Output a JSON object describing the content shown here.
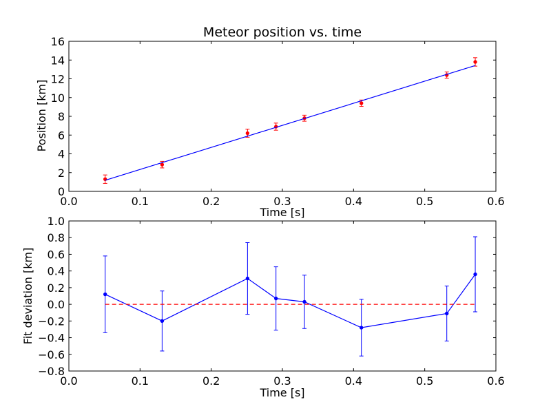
{
  "chart_data": [
    {
      "type": "scatter",
      "title": "Meteor position vs. time",
      "xlabel": "Time [s]",
      "ylabel": "Position [km]",
      "xlim": [
        0.0,
        0.6
      ],
      "ylim": [
        0,
        16
      ],
      "xticks": [
        "0.0",
        "0.1",
        "0.2",
        "0.3",
        "0.4",
        "0.5",
        "0.6"
      ],
      "yticks": [
        "0",
        "2",
        "4",
        "6",
        "8",
        "10",
        "12",
        "14",
        "16"
      ],
      "grid": false,
      "series": [
        {
          "kind": "errorbar-points",
          "color": "#ff0000",
          "x": [
            0.051,
            0.131,
            0.251,
            0.291,
            0.331,
            0.411,
            0.531,
            0.571
          ],
          "y": [
            1.3,
            2.85,
            6.2,
            6.9,
            7.8,
            9.4,
            12.4,
            13.8
          ],
          "yerr": [
            0.45,
            0.35,
            0.43,
            0.38,
            0.32,
            0.34,
            0.33,
            0.45
          ]
        },
        {
          "kind": "fit-line",
          "color": "#0000ff",
          "x": [
            0.051,
            0.571
          ],
          "y": [
            1.18,
            13.42
          ]
        }
      ]
    },
    {
      "type": "line",
      "title": "",
      "xlabel": "Time [s]",
      "ylabel": "Fit deviation [km]",
      "xlim": [
        0.0,
        0.6
      ],
      "ylim": [
        -0.8,
        1.0
      ],
      "xticks": [
        "0.0",
        "0.1",
        "0.2",
        "0.3",
        "0.4",
        "0.5",
        "0.6"
      ],
      "yticks": [
        "−0.8",
        "−0.6",
        "−0.4",
        "−0.2",
        "0.0",
        "0.2",
        "0.4",
        "0.6",
        "0.8",
        "1.0"
      ],
      "grid": false,
      "series": [
        {
          "kind": "errorbar-line",
          "color": "#0000ff",
          "x": [
            0.051,
            0.131,
            0.251,
            0.291,
            0.331,
            0.411,
            0.531,
            0.571
          ],
          "y": [
            0.12,
            -0.2,
            0.31,
            0.07,
            0.03,
            -0.28,
            -0.11,
            0.36
          ],
          "yerr": [
            0.46,
            0.36,
            0.43,
            0.38,
            0.32,
            0.34,
            0.33,
            0.45
          ]
        },
        {
          "kind": "reference-line",
          "style": "dashed",
          "color": "#ff0000",
          "x": [
            0.051,
            0.571
          ],
          "y": [
            0.0,
            0.0
          ]
        }
      ]
    }
  ]
}
